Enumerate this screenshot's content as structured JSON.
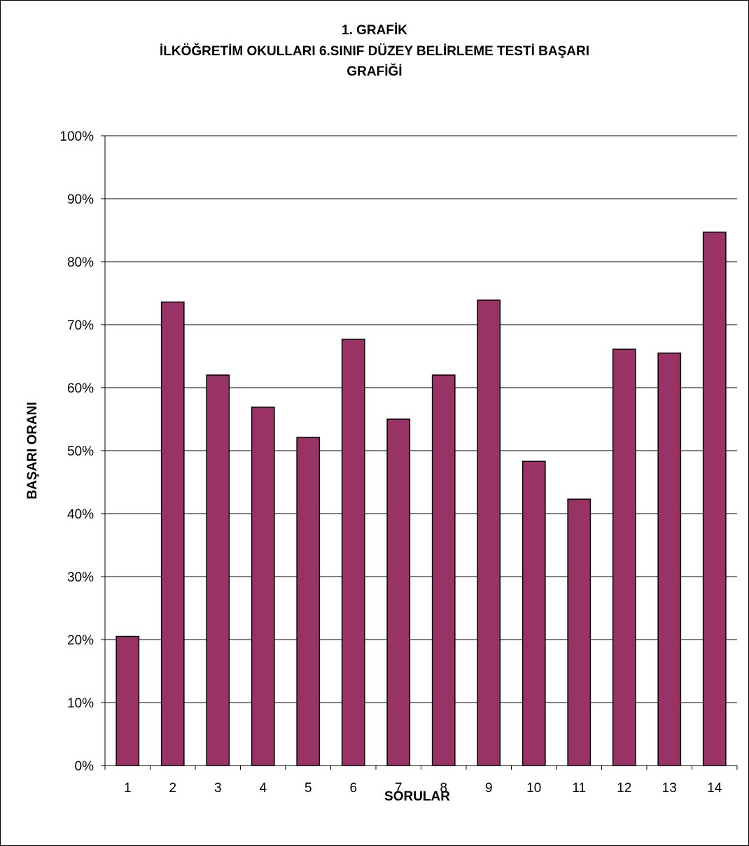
{
  "chart_data": {
    "type": "bar",
    "title": [
      "1. GRAFİK",
      "İLKÖĞRETİM OKULLARI 6.SINIF DÜZEY BELİRLEME TESTİ BAŞARI",
      "GRAFİĞİ"
    ],
    "xlabel": "SORULAR",
    "ylabel": "BAŞARI ORANI",
    "categories": [
      "1",
      "2",
      "3",
      "4",
      "5",
      "6",
      "7",
      "8",
      "9",
      "10",
      "11",
      "12",
      "13",
      "14"
    ],
    "values": [
      20.5,
      73.6,
      62.0,
      56.9,
      52.1,
      67.7,
      55.0,
      62.0,
      73.9,
      48.3,
      42.3,
      66.1,
      65.5,
      84.7
    ],
    "y_unit": "%",
    "ylim": [
      0,
      100
    ],
    "y_ticks": [
      "0%",
      "10%",
      "20%",
      "30%",
      "40%",
      "50%",
      "60%",
      "70%",
      "80%",
      "90%",
      "100%"
    ],
    "grid": true,
    "legend": "none",
    "bar_color": "#993366"
  }
}
